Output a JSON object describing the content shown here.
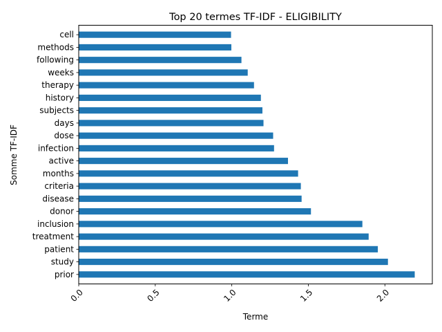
{
  "chart_data": {
    "type": "bar",
    "orientation": "horizontal",
    "title": "Top 20 termes TF-IDF - ELIGIBILITY",
    "xlabel": "Terme",
    "ylabel": "Somme TF-IDF",
    "xlim": [
      0,
      2.31
    ],
    "xticks": [
      {
        "value": 0.0,
        "label": "0.0"
      },
      {
        "value": 0.5,
        "label": "0.5"
      },
      {
        "value": 1.0,
        "label": "1.0"
      },
      {
        "value": 1.5,
        "label": "1.5"
      },
      {
        "value": 2.0,
        "label": "2.0"
      }
    ],
    "categories": [
      "cell",
      "methods",
      "following",
      "weeks",
      "therapy",
      "history",
      "subjects",
      "days",
      "dose",
      "infection",
      "active",
      "months",
      "criteria",
      "disease",
      "donor",
      "inclusion",
      "treatment",
      "patient",
      "study",
      "prior"
    ],
    "values": [
      0.995,
      0.997,
      1.063,
      1.104,
      1.145,
      1.19,
      1.2,
      1.207,
      1.27,
      1.276,
      1.367,
      1.433,
      1.451,
      1.456,
      1.517,
      1.853,
      1.894,
      1.954,
      2.02,
      2.195
    ],
    "bar_color": "#1f77b4",
    "grid": false,
    "legend": "none"
  }
}
